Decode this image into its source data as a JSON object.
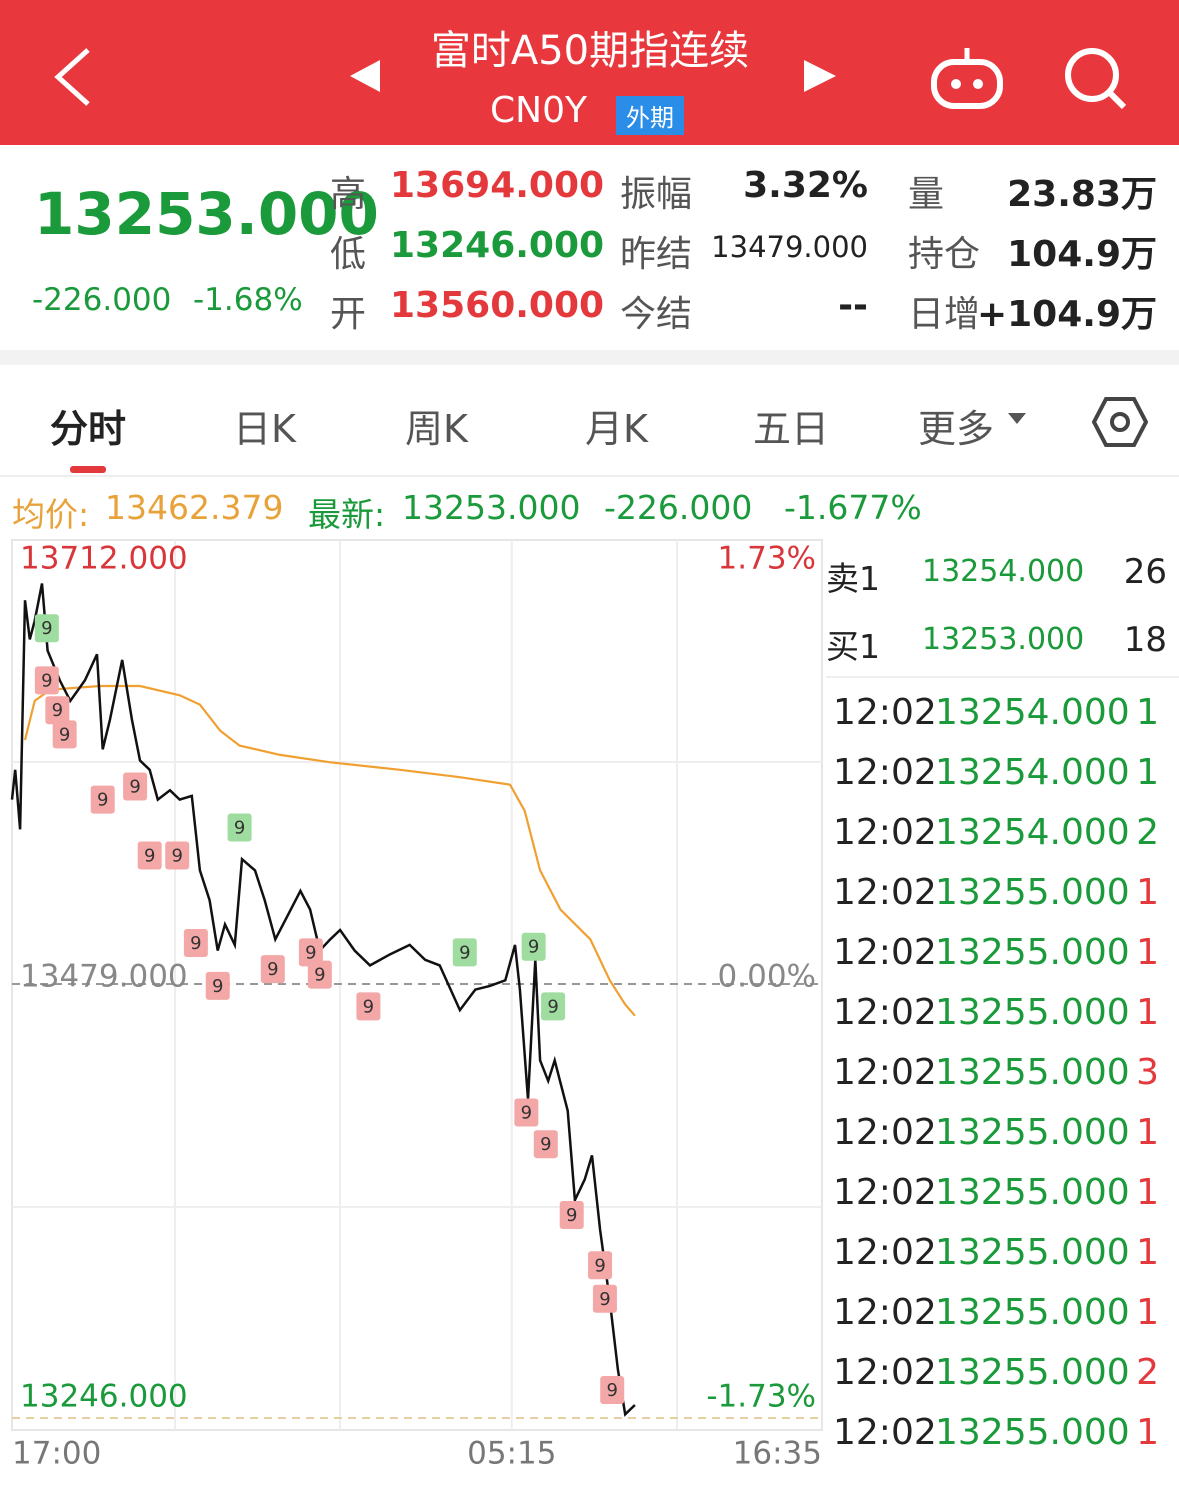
{
  "header": {
    "title": "富时A50期指连续",
    "code": "CN0Y",
    "tag": "外期"
  },
  "quote": {
    "price": "13253.000",
    "change": "-226.000",
    "change_pct": "-1.68%",
    "stats": [
      [
        {
          "label": "高",
          "value": "13694.000"
        },
        {
          "label": "振幅",
          "value": "3.32%"
        },
        {
          "label": "量",
          "value": "23.83万"
        }
      ],
      [
        {
          "label": "低",
          "value": "13246.000"
        },
        {
          "label": "昨结",
          "value": "13479.000"
        },
        {
          "label": "持仓",
          "value": "104.9万"
        }
      ],
      [
        {
          "label": "开",
          "value": "13560.000"
        },
        {
          "label": "今结",
          "value": "--"
        },
        {
          "label": "日增",
          "value": "+104.9万"
        }
      ]
    ]
  },
  "tabs": [
    "分时",
    "日K",
    "周K",
    "月K",
    "五日",
    "更多"
  ],
  "info_bar": {
    "avg_label": "均价:",
    "avg": "13462.379",
    "latest_label": "最新:",
    "latest": "13253.000",
    "change": "-226.000",
    "change_pct": "-1.677%"
  },
  "order_book": [
    {
      "label": "卖1",
      "price": "13254.000",
      "qty": "26"
    },
    {
      "label": "买1",
      "price": "13253.000",
      "qty": "18"
    }
  ],
  "trades": [
    {
      "time": "12:02",
      "price": "13254.000",
      "qty": "1",
      "side": "sell"
    },
    {
      "time": "12:02",
      "price": "13254.000",
      "qty": "1",
      "side": "sell"
    },
    {
      "time": "12:02",
      "price": "13254.000",
      "qty": "2",
      "side": "sell"
    },
    {
      "time": "12:02",
      "price": "13255.000",
      "qty": "1",
      "side": "buy"
    },
    {
      "time": "12:02",
      "price": "13255.000",
      "qty": "1",
      "side": "buy"
    },
    {
      "time": "12:02",
      "price": "13255.000",
      "qty": "1",
      "side": "buy"
    },
    {
      "time": "12:02",
      "price": "13255.000",
      "qty": "3",
      "side": "buy"
    },
    {
      "time": "12:02",
      "price": "13255.000",
      "qty": "1",
      "side": "buy"
    },
    {
      "time": "12:02",
      "price": "13255.000",
      "qty": "1",
      "side": "buy"
    },
    {
      "time": "12:02",
      "price": "13255.000",
      "qty": "1",
      "side": "buy"
    },
    {
      "time": "12:02",
      "price": "13255.000",
      "qty": "1",
      "side": "buy"
    },
    {
      "time": "12:02",
      "price": "13255.000",
      "qty": "2",
      "side": "buy"
    },
    {
      "time": "12:02",
      "price": "13255.000",
      "qty": "1",
      "side": "buy"
    }
  ],
  "chart_data": {
    "type": "line",
    "xlim": [
      0,
      1000
    ],
    "xticks": [
      {
        "value": 0,
        "label": "17:00"
      },
      {
        "value": 617,
        "label": "05:15"
      },
      {
        "value": 1000,
        "label": "16:35"
      }
    ],
    "ylim": [
      13246,
      13712
    ],
    "yticks": [
      {
        "value": 13712,
        "label": "13712.000"
      },
      {
        "value": 13479,
        "label": "13479.000"
      },
      {
        "value": 13246,
        "label": "13246.000"
      }
    ],
    "y2lim": [
      -1.73,
      1.73
    ],
    "y2ticks": [
      {
        "value": 1.73,
        "label": "1.73%"
      },
      {
        "value": 0,
        "label": "0.00%"
      },
      {
        "value": -1.73,
        "label": "-1.73%"
      }
    ],
    "series": [
      {
        "color": "#111111",
        "x": [
          0,
          4,
          10,
          16,
          22,
          28,
          37,
          44,
          59,
          72,
          90,
          105,
          112,
          121,
          136,
          148,
          158,
          170,
          180,
          195,
          207,
          222,
          232,
          244,
          254,
          263,
          275,
          284,
          300,
          312,
          325,
          337,
          356,
          368,
          380,
          393,
          405,
          423,
          442,
          467,
          491,
          510,
          528,
          553,
          572,
          590,
          609,
          621,
          627,
          637,
          646,
          652,
          662,
          670,
          686,
          695,
          707,
          716,
          726,
          738,
          748,
          757,
          769
        ],
        "values": [
          13578,
          13594,
          13562,
          13685,
          13664,
          13674,
          13694,
          13658,
          13642,
          13631,
          13642,
          13656,
          13605,
          13621,
          13653,
          13621,
          13599,
          13594,
          13578,
          13583,
          13578,
          13580,
          13540,
          13524,
          13497,
          13511,
          13500,
          13546,
          13540,
          13524,
          13503,
          13513,
          13529,
          13519,
          13497,
          13503,
          13508,
          13497,
          13489,
          13495,
          13500,
          13492,
          13489,
          13465,
          13476,
          13478,
          13481,
          13500,
          13476,
          13417,
          13492,
          13438,
          13427,
          13438,
          13411,
          13363,
          13374,
          13387,
          13347,
          13309,
          13272,
          13248,
          13253
        ]
      },
      {
        "color": "#f0a030",
        "x": [
          16,
          28,
          47,
          109,
          158,
          207,
          232,
          257,
          281,
          331,
          393,
          479,
          553,
          615,
          633,
          652,
          677,
          714,
          738,
          757,
          769
        ],
        "values": [
          13610,
          13631,
          13637,
          13639,
          13639,
          13634,
          13629,
          13615,
          13607,
          13602,
          13598,
          13594,
          13590,
          13586,
          13572,
          13540,
          13519,
          13503,
          13481,
          13468,
          13462
        ]
      }
    ],
    "annotations": [
      {
        "x": 43,
        "y": 13642,
        "text": "9",
        "color": "#f4a7a7"
      },
      {
        "x": 56,
        "y": 13626,
        "text": "9",
        "color": "#f4a7a7"
      },
      {
        "x": 65,
        "y": 13613,
        "text": "9",
        "color": "#f4a7a7"
      },
      {
        "x": 112,
        "y": 13578,
        "text": "9",
        "color": "#f4a7a7"
      },
      {
        "x": 152,
        "y": 13585,
        "text": "9",
        "color": "#f4a7a7"
      },
      {
        "x": 170,
        "y": 13548,
        "text": "9",
        "color": "#f4a7a7"
      },
      {
        "x": 204,
        "y": 13548,
        "text": "9",
        "color": "#f4a7a7"
      },
      {
        "x": 227,
        "y": 13501,
        "text": "9",
        "color": "#f4a7a7"
      },
      {
        "x": 254,
        "y": 13478,
        "text": "9",
        "color": "#f4a7a7"
      },
      {
        "x": 322,
        "y": 13487,
        "text": "9",
        "color": "#f4a7a7"
      },
      {
        "x": 369,
        "y": 13496,
        "text": "9",
        "color": "#f4a7a7"
      },
      {
        "x": 380,
        "y": 13484,
        "text": "9",
        "color": "#f4a7a7"
      },
      {
        "x": 440,
        "y": 13467,
        "text": "9",
        "color": "#f4a7a7"
      },
      {
        "x": 635,
        "y": 13410,
        "text": "9",
        "color": "#f4a7a7"
      },
      {
        "x": 659,
        "y": 13393,
        "text": "9",
        "color": "#f4a7a7"
      },
      {
        "x": 691,
        "y": 13355,
        "text": "9",
        "color": "#f4a7a7"
      },
      {
        "x": 726,
        "y": 13328,
        "text": "9",
        "color": "#f4a7a7"
      },
      {
        "x": 732,
        "y": 13310,
        "text": "9",
        "color": "#f4a7a7"
      },
      {
        "x": 741,
        "y": 13261,
        "text": "9",
        "color": "#f4a7a7"
      },
      {
        "x": 43,
        "y": 13670,
        "text": "9",
        "color": "#9fdc9f"
      },
      {
        "x": 281,
        "y": 13563,
        "text": "9",
        "color": "#9fdc9f"
      },
      {
        "x": 559,
        "y": 13496,
        "text": "9",
        "color": "#9fdc9f"
      },
      {
        "x": 644,
        "y": 13499,
        "text": "9",
        "color": "#9fdc9f"
      },
      {
        "x": 668,
        "y": 13467,
        "text": "9",
        "color": "#9fdc9f"
      }
    ]
  }
}
